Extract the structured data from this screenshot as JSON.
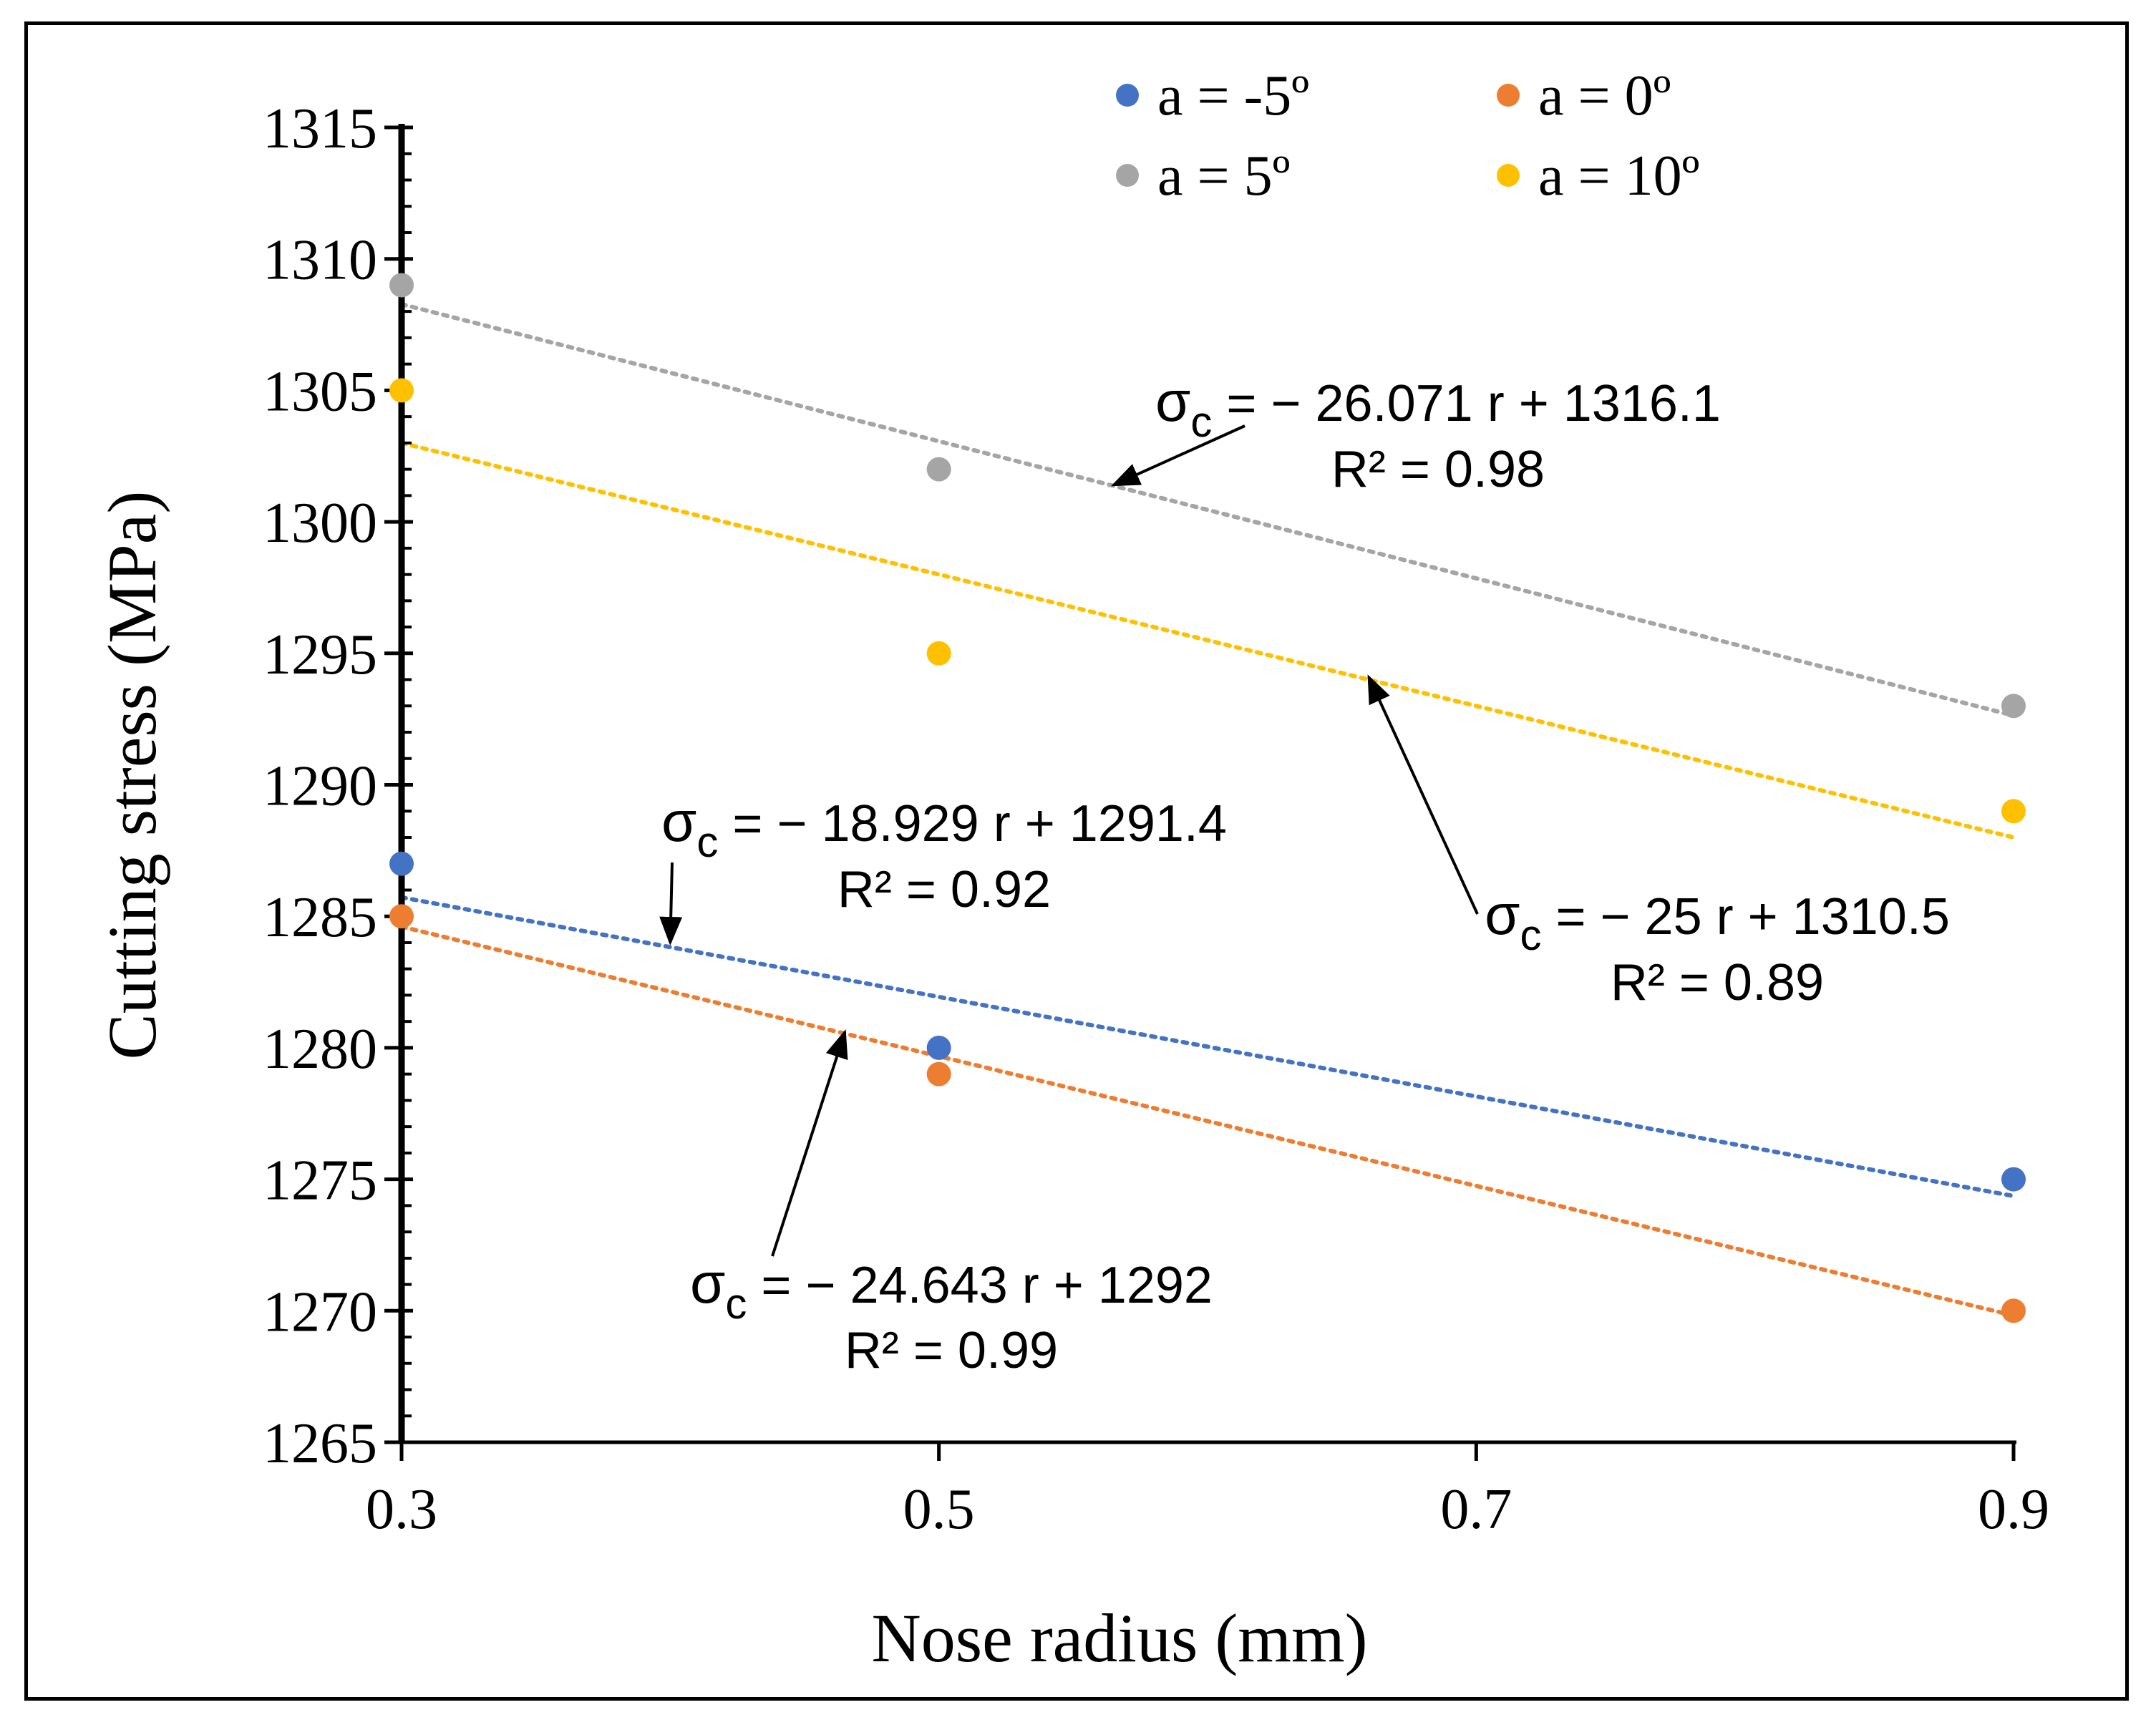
{
  "chart_data": {
    "type": "scatter",
    "xlabel": "Nose radius (mm)",
    "ylabel": "Cutting stress (MPa)",
    "xlim": [
      0.3,
      0.9
    ],
    "ylim": [
      1265,
      1315
    ],
    "xticks": [
      0.3,
      0.5,
      0.7,
      0.9
    ],
    "xtick_labels": [
      "0.3",
      "0.5",
      "0.7",
      "0.9"
    ],
    "yticks": [
      1265,
      1270,
      1275,
      1280,
      1285,
      1290,
      1295,
      1300,
      1305,
      1310,
      1315
    ],
    "ytick_labels": [
      "1265",
      "1270",
      "1275",
      "1280",
      "1285",
      "1290",
      "1295",
      "1300",
      "1305",
      "1310",
      "1315"
    ],
    "grid": false,
    "legend_position": "top-right",
    "series": [
      {
        "name": "a = -5º",
        "color": "#4472c4",
        "x": [
          0.3,
          0.5,
          0.9
        ],
        "y": [
          1287,
          1280,
          1275
        ],
        "trendline": {
          "slope": -18.929,
          "intercept": 1291.4
        },
        "equation": "σc = − 18.929 r + 1291.4",
        "r2": "R² = 0.92"
      },
      {
        "name": "a = 0º",
        "color": "#ed7d31",
        "x": [
          0.3,
          0.5,
          0.9
        ],
        "y": [
          1285,
          1279,
          1270
        ],
        "trendline": {
          "slope": -24.643,
          "intercept": 1292
        },
        "equation": "σc = − 24.643 r + 1292",
        "r2": "R² = 0.99"
      },
      {
        "name": "a = 5º",
        "color": "#a5a5a5",
        "x": [
          0.3,
          0.5,
          0.9
        ],
        "y": [
          1309,
          1302,
          1293
        ],
        "trendline": {
          "slope": -26.071,
          "intercept": 1316.1
        },
        "equation": "σc = − 26.071 r + 1316.1",
        "r2": "R² = 0.98"
      },
      {
        "name": "a = 10º",
        "color": "#ffc000",
        "x": [
          0.3,
          0.5,
          0.9
        ],
        "y": [
          1305,
          1295,
          1289
        ],
        "trendline": {
          "slope": -25,
          "intercept": 1310.5
        },
        "equation": "σc = − 25 r + 1310.5",
        "r2": "R² = 0.89"
      }
    ],
    "annotations": [
      {
        "series": 2,
        "target_x": 0.565,
        "target_y": 1301.4
      },
      {
        "series": 3,
        "target_x": 0.66,
        "target_y": 1294.1
      },
      {
        "series": 0,
        "target_x": 0.4,
        "target_y": 1284
      },
      {
        "series": 1,
        "target_x": 0.465,
        "target_y": 1280.6
      }
    ]
  }
}
